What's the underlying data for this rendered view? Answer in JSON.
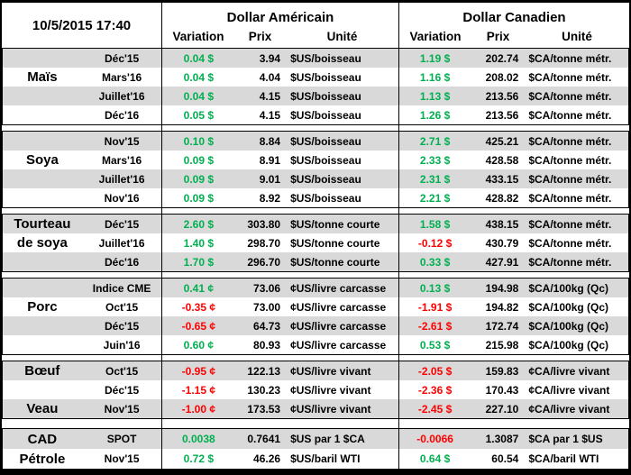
{
  "header": {
    "datetime": "10/5/2015 17:40",
    "us_title": "Dollar Américain",
    "ca_title": "Dollar Canadien",
    "col_variation": "Variation",
    "col_prix": "Prix",
    "col_unite": "Unité"
  },
  "colors": {
    "positive": "#00B050",
    "negative": "#FF0000",
    "stripe": "#D9D9D9"
  },
  "groups": [
    {
      "name": "Maïs",
      "rows": [
        {
          "label": "",
          "month": "Déc'15",
          "us": {
            "var": "0.04 $",
            "prix": "3.94",
            "unit": "$US/boisseau"
          },
          "ca": {
            "var": "1.19 $",
            "prix": "202.74",
            "unit": "$CA/tonne métr."
          }
        },
        {
          "label": "Maïs",
          "month": "Mars'16",
          "us": {
            "var": "0.04 $",
            "prix": "4.04",
            "unit": "$US/boisseau"
          },
          "ca": {
            "var": "1.16 $",
            "prix": "208.02",
            "unit": "$CA/tonne métr."
          }
        },
        {
          "label": "",
          "month": "Juillet'16",
          "us": {
            "var": "0.04 $",
            "prix": "4.15",
            "unit": "$US/boisseau"
          },
          "ca": {
            "var": "1.13 $",
            "prix": "213.56",
            "unit": "$CA/tonne métr."
          }
        },
        {
          "label": "",
          "month": "Déc'16",
          "us": {
            "var": "0.05 $",
            "prix": "4.15",
            "unit": "$US/boisseau"
          },
          "ca": {
            "var": "1.26 $",
            "prix": "213.56",
            "unit": "$CA/tonne métr."
          }
        }
      ]
    },
    {
      "name": "Soya",
      "rows": [
        {
          "label": "",
          "month": "Nov'15",
          "us": {
            "var": "0.10 $",
            "prix": "8.84",
            "unit": "$US/boisseau"
          },
          "ca": {
            "var": "2.71 $",
            "prix": "425.21",
            "unit": "$CA/tonne métr."
          }
        },
        {
          "label": "Soya",
          "month": "Mars'16",
          "us": {
            "var": "0.09 $",
            "prix": "8.91",
            "unit": "$US/boisseau"
          },
          "ca": {
            "var": "2.33 $",
            "prix": "428.58",
            "unit": "$CA/tonne métr."
          }
        },
        {
          "label": "",
          "month": "Juillet'16",
          "us": {
            "var": "0.09 $",
            "prix": "9.01",
            "unit": "$US/boisseau"
          },
          "ca": {
            "var": "2.31 $",
            "prix": "433.15",
            "unit": "$CA/tonne métr."
          }
        },
        {
          "label": "",
          "month": "Nov'16",
          "us": {
            "var": "0.09 $",
            "prix": "8.92",
            "unit": "$US/boisseau"
          },
          "ca": {
            "var": "2.21 $",
            "prix": "428.82",
            "unit": "$CA/tonne métr."
          }
        }
      ]
    },
    {
      "name": "Tourteau de soya",
      "rows": [
        {
          "label": "Tourteau",
          "month": "Déc'15",
          "us": {
            "var": "2.60 $",
            "prix": "303.80",
            "unit": "$US/tonne courte"
          },
          "ca": {
            "var": "1.58 $",
            "prix": "438.15",
            "unit": "$CA/tonne métr."
          }
        },
        {
          "label": "de soya",
          "month": "Juillet'16",
          "us": {
            "var": "1.40 $",
            "prix": "298.70",
            "unit": "$US/tonne courte"
          },
          "ca": {
            "var": "-0.12 $",
            "prix": "430.79",
            "unit": "$CA/tonne métr."
          }
        },
        {
          "label": "",
          "month": "Déc'16",
          "us": {
            "var": "1.70 $",
            "prix": "296.70",
            "unit": "$US/tonne courte"
          },
          "ca": {
            "var": "0.33 $",
            "prix": "427.91",
            "unit": "$CA/tonne métr."
          }
        }
      ]
    },
    {
      "name": "Porc",
      "rows": [
        {
          "label": "",
          "month": "Indice CME",
          "us": {
            "var": "0.41 ¢",
            "prix": "73.06",
            "unit": "¢US/livre carcasse"
          },
          "ca": {
            "var": "0.13 $",
            "prix": "194.98",
            "unit": "$CA/100kg (Qc)"
          }
        },
        {
          "label": "Porc",
          "month": "Oct'15",
          "us": {
            "var": "-0.35 ¢",
            "prix": "73.00",
            "unit": "¢US/livre carcasse"
          },
          "ca": {
            "var": "-1.91 $",
            "prix": "194.82",
            "unit": "$CA/100kg (Qc)"
          }
        },
        {
          "label": "",
          "month": "Déc'15",
          "us": {
            "var": "-0.65 ¢",
            "prix": "64.73",
            "unit": "¢US/livre carcasse"
          },
          "ca": {
            "var": "-2.61 $",
            "prix": "172.74",
            "unit": "$CA/100kg (Qc)"
          }
        },
        {
          "label": "",
          "month": "Juin'16",
          "us": {
            "var": "0.60 ¢",
            "prix": "80.93",
            "unit": "¢US/livre carcasse"
          },
          "ca": {
            "var": "0.53 $",
            "prix": "215.98",
            "unit": "$CA/100kg (Qc)"
          }
        }
      ]
    },
    {
      "name": "Bœuf / Veau",
      "rows": [
        {
          "label": "Bœuf",
          "month": "Oct'15",
          "us": {
            "var": "-0.95 ¢",
            "prix": "122.13",
            "unit": "¢US/livre vivant"
          },
          "ca": {
            "var": "-2.05 $",
            "prix": "159.83",
            "unit": "¢CA/livre vivant"
          }
        },
        {
          "label": "",
          "month": "Déc'15",
          "us": {
            "var": "-1.15 ¢",
            "prix": "130.23",
            "unit": "¢US/livre vivant"
          },
          "ca": {
            "var": "-2.36 $",
            "prix": "170.43",
            "unit": "¢CA/livre vivant"
          }
        },
        {
          "label": "Veau",
          "month": "Nov'15",
          "us": {
            "var": "-1.00 ¢",
            "prix": "173.53",
            "unit": "¢US/livre vivant"
          },
          "ca": {
            "var": "-2.45 $",
            "prix": "227.10",
            "unit": "¢CA/livre vivant"
          }
        }
      ]
    },
    {
      "name": "CAD / Pétrole",
      "rows": [
        {
          "label": "CAD",
          "month": "SPOT",
          "us": {
            "var": "0.0038",
            "prix": "0.7641",
            "unit": "$US par 1 $CA"
          },
          "ca": {
            "var": "-0.0066",
            "prix": "1.3087",
            "unit": "$CA par 1 $US"
          }
        },
        {
          "label": "Pétrole",
          "month": "Nov'15",
          "us": {
            "var": "0.72 $",
            "prix": "46.26",
            "unit": "$US/baril WTI"
          },
          "ca": {
            "var": "0.64 $",
            "prix": "60.54",
            "unit": "$CA/baril WTI"
          }
        }
      ]
    }
  ]
}
